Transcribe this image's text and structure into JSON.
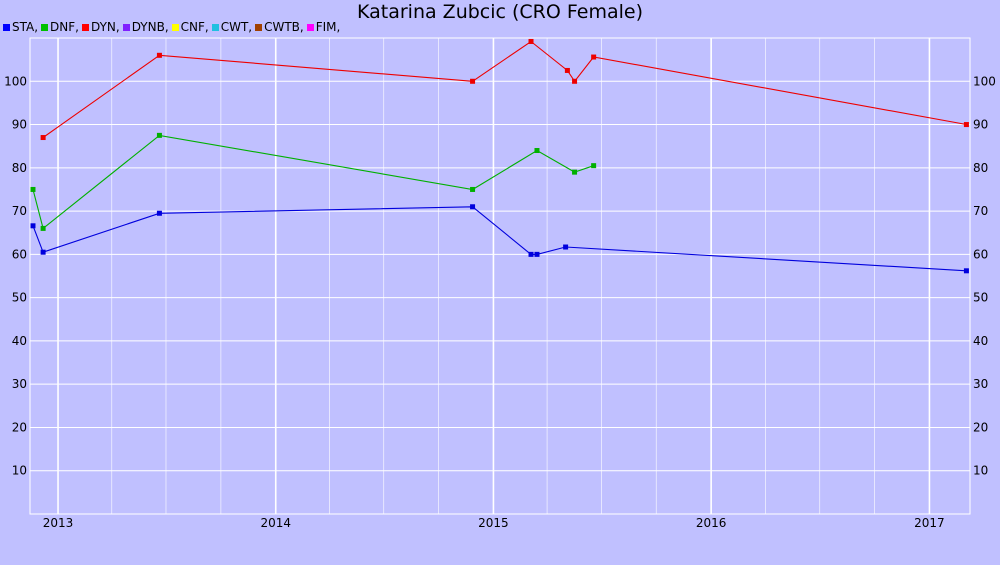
{
  "chart_data": {
    "type": "line",
    "title": "Katarina Zubcic (CRO Female)",
    "xlabel": "",
    "ylabel": "",
    "x_ticks": [
      "2013",
      "2014",
      "2015",
      "2016",
      "2017"
    ],
    "y_ticks": [
      10,
      20,
      30,
      40,
      50,
      60,
      70,
      80,
      90,
      100
    ],
    "xlim": [
      "2012-11-15",
      "2017-03-10"
    ],
    "ylim": [
      0,
      110
    ],
    "grid": true,
    "legend_position": "top-left",
    "legend": [
      {
        "name": "STA,",
        "color": "#0000ff"
      },
      {
        "name": "DNF,",
        "color": "#00c000"
      },
      {
        "name": "DYN,",
        "color": "#ff0000"
      },
      {
        "name": "DYNB,",
        "color": "#8020ff"
      },
      {
        "name": "CNF,",
        "color": "#ffff00"
      },
      {
        "name": "CWT,",
        "color": "#20c0e0"
      },
      {
        "name": "CWTB,",
        "color": "#a04000"
      },
      {
        "name": "FIM,",
        "color": "#ff00ff"
      }
    ],
    "series": [
      {
        "name": "STA",
        "color": "#0000dd",
        "points": [
          {
            "x": "2012-11-20",
            "y": 66.6
          },
          {
            "x": "2012-12-07",
            "y": 60.5
          },
          {
            "x": "2013-06-20",
            "y": 69.5
          },
          {
            "x": "2014-11-27",
            "y": 71.0
          },
          {
            "x": "2015-03-05",
            "y": 60.0
          },
          {
            "x": "2015-03-15",
            "y": 60.0
          },
          {
            "x": "2015-05-02",
            "y": 61.7
          },
          {
            "x": "2017-03-04",
            "y": 56.2
          }
        ]
      },
      {
        "name": "DNF",
        "color": "#00b000",
        "points": [
          {
            "x": "2012-11-20",
            "y": 75.0
          },
          {
            "x": "2012-12-07",
            "y": 66.0
          },
          {
            "x": "2013-06-20",
            "y": 87.5
          },
          {
            "x": "2014-11-27",
            "y": 75.0
          },
          {
            "x": "2015-03-15",
            "y": 84.0
          },
          {
            "x": "2015-05-17",
            "y": 79.0
          },
          {
            "x": "2015-06-18",
            "y": 80.5
          }
        ]
      },
      {
        "name": "DYN",
        "color": "#ee0000",
        "points": [
          {
            "x": "2012-12-07",
            "y": 87.0
          },
          {
            "x": "2013-06-20",
            "y": 106.0
          },
          {
            "x": "2014-11-27",
            "y": 100.0
          },
          {
            "x": "2015-03-05",
            "y": 109.2
          },
          {
            "x": "2015-05-05",
            "y": 102.5
          },
          {
            "x": "2015-05-17",
            "y": 100.0
          },
          {
            "x": "2015-06-18",
            "y": 105.6
          },
          {
            "x": "2017-03-04",
            "y": 90.0
          }
        ]
      }
    ]
  }
}
